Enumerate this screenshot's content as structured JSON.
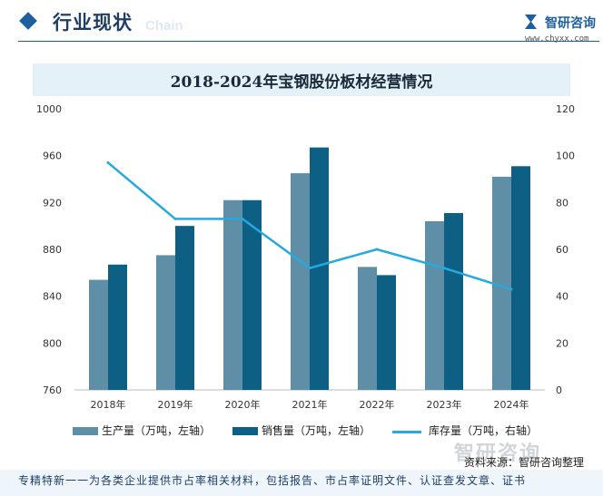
{
  "header": {
    "section_title": "行业现状",
    "chain_watermark": "Chain",
    "brand": "智研咨询",
    "site": "www.chyxx.com"
  },
  "colors": {
    "production": "#5f8fa6",
    "sales": "#0d5f84",
    "inventory": "#27a9df",
    "accent": "#1e5f9e"
  },
  "legend": {
    "production": "生产量（万吨，左轴）",
    "sales": "销售量（万吨，左轴）",
    "inventory": "库存量（万吨，右轴）"
  },
  "source": "资料来源：智研咨询整理",
  "watermark": "智研咨询",
  "footer": "专精特新一一为各类企业提供市占率相关材料，包括报告、市占率证明文件、认证查发文章、证书",
  "chart_data": {
    "type": "bar",
    "title": "2018-2024年宝钢股份板材经营情况",
    "categories": [
      "2018年",
      "2019年",
      "2020年",
      "2021年",
      "2022年",
      "2023年",
      "2024年"
    ],
    "series": [
      {
        "name": "生产量（万吨，左轴）",
        "type": "bar",
        "axis": "left",
        "values": [
          854,
          875,
          922,
          945,
          865,
          904,
          942
        ]
      },
      {
        "name": "销售量（万吨，左轴）",
        "type": "bar",
        "axis": "left",
        "values": [
          867,
          900,
          922,
          967,
          858,
          911,
          951
        ]
      },
      {
        "name": "库存量（万吨，右轴）",
        "type": "line",
        "axis": "right",
        "values": [
          97,
          73,
          73,
          52,
          60,
          52,
          43
        ]
      }
    ],
    "ylim_left": [
      760,
      1000
    ],
    "yticks_left": [
      760,
      800,
      840,
      880,
      920,
      960,
      1000
    ],
    "ylim_right": [
      0,
      120
    ],
    "yticks_right": [
      0,
      20,
      40,
      60,
      80,
      100,
      120
    ],
    "legend_position": "bottom",
    "grid": false
  }
}
